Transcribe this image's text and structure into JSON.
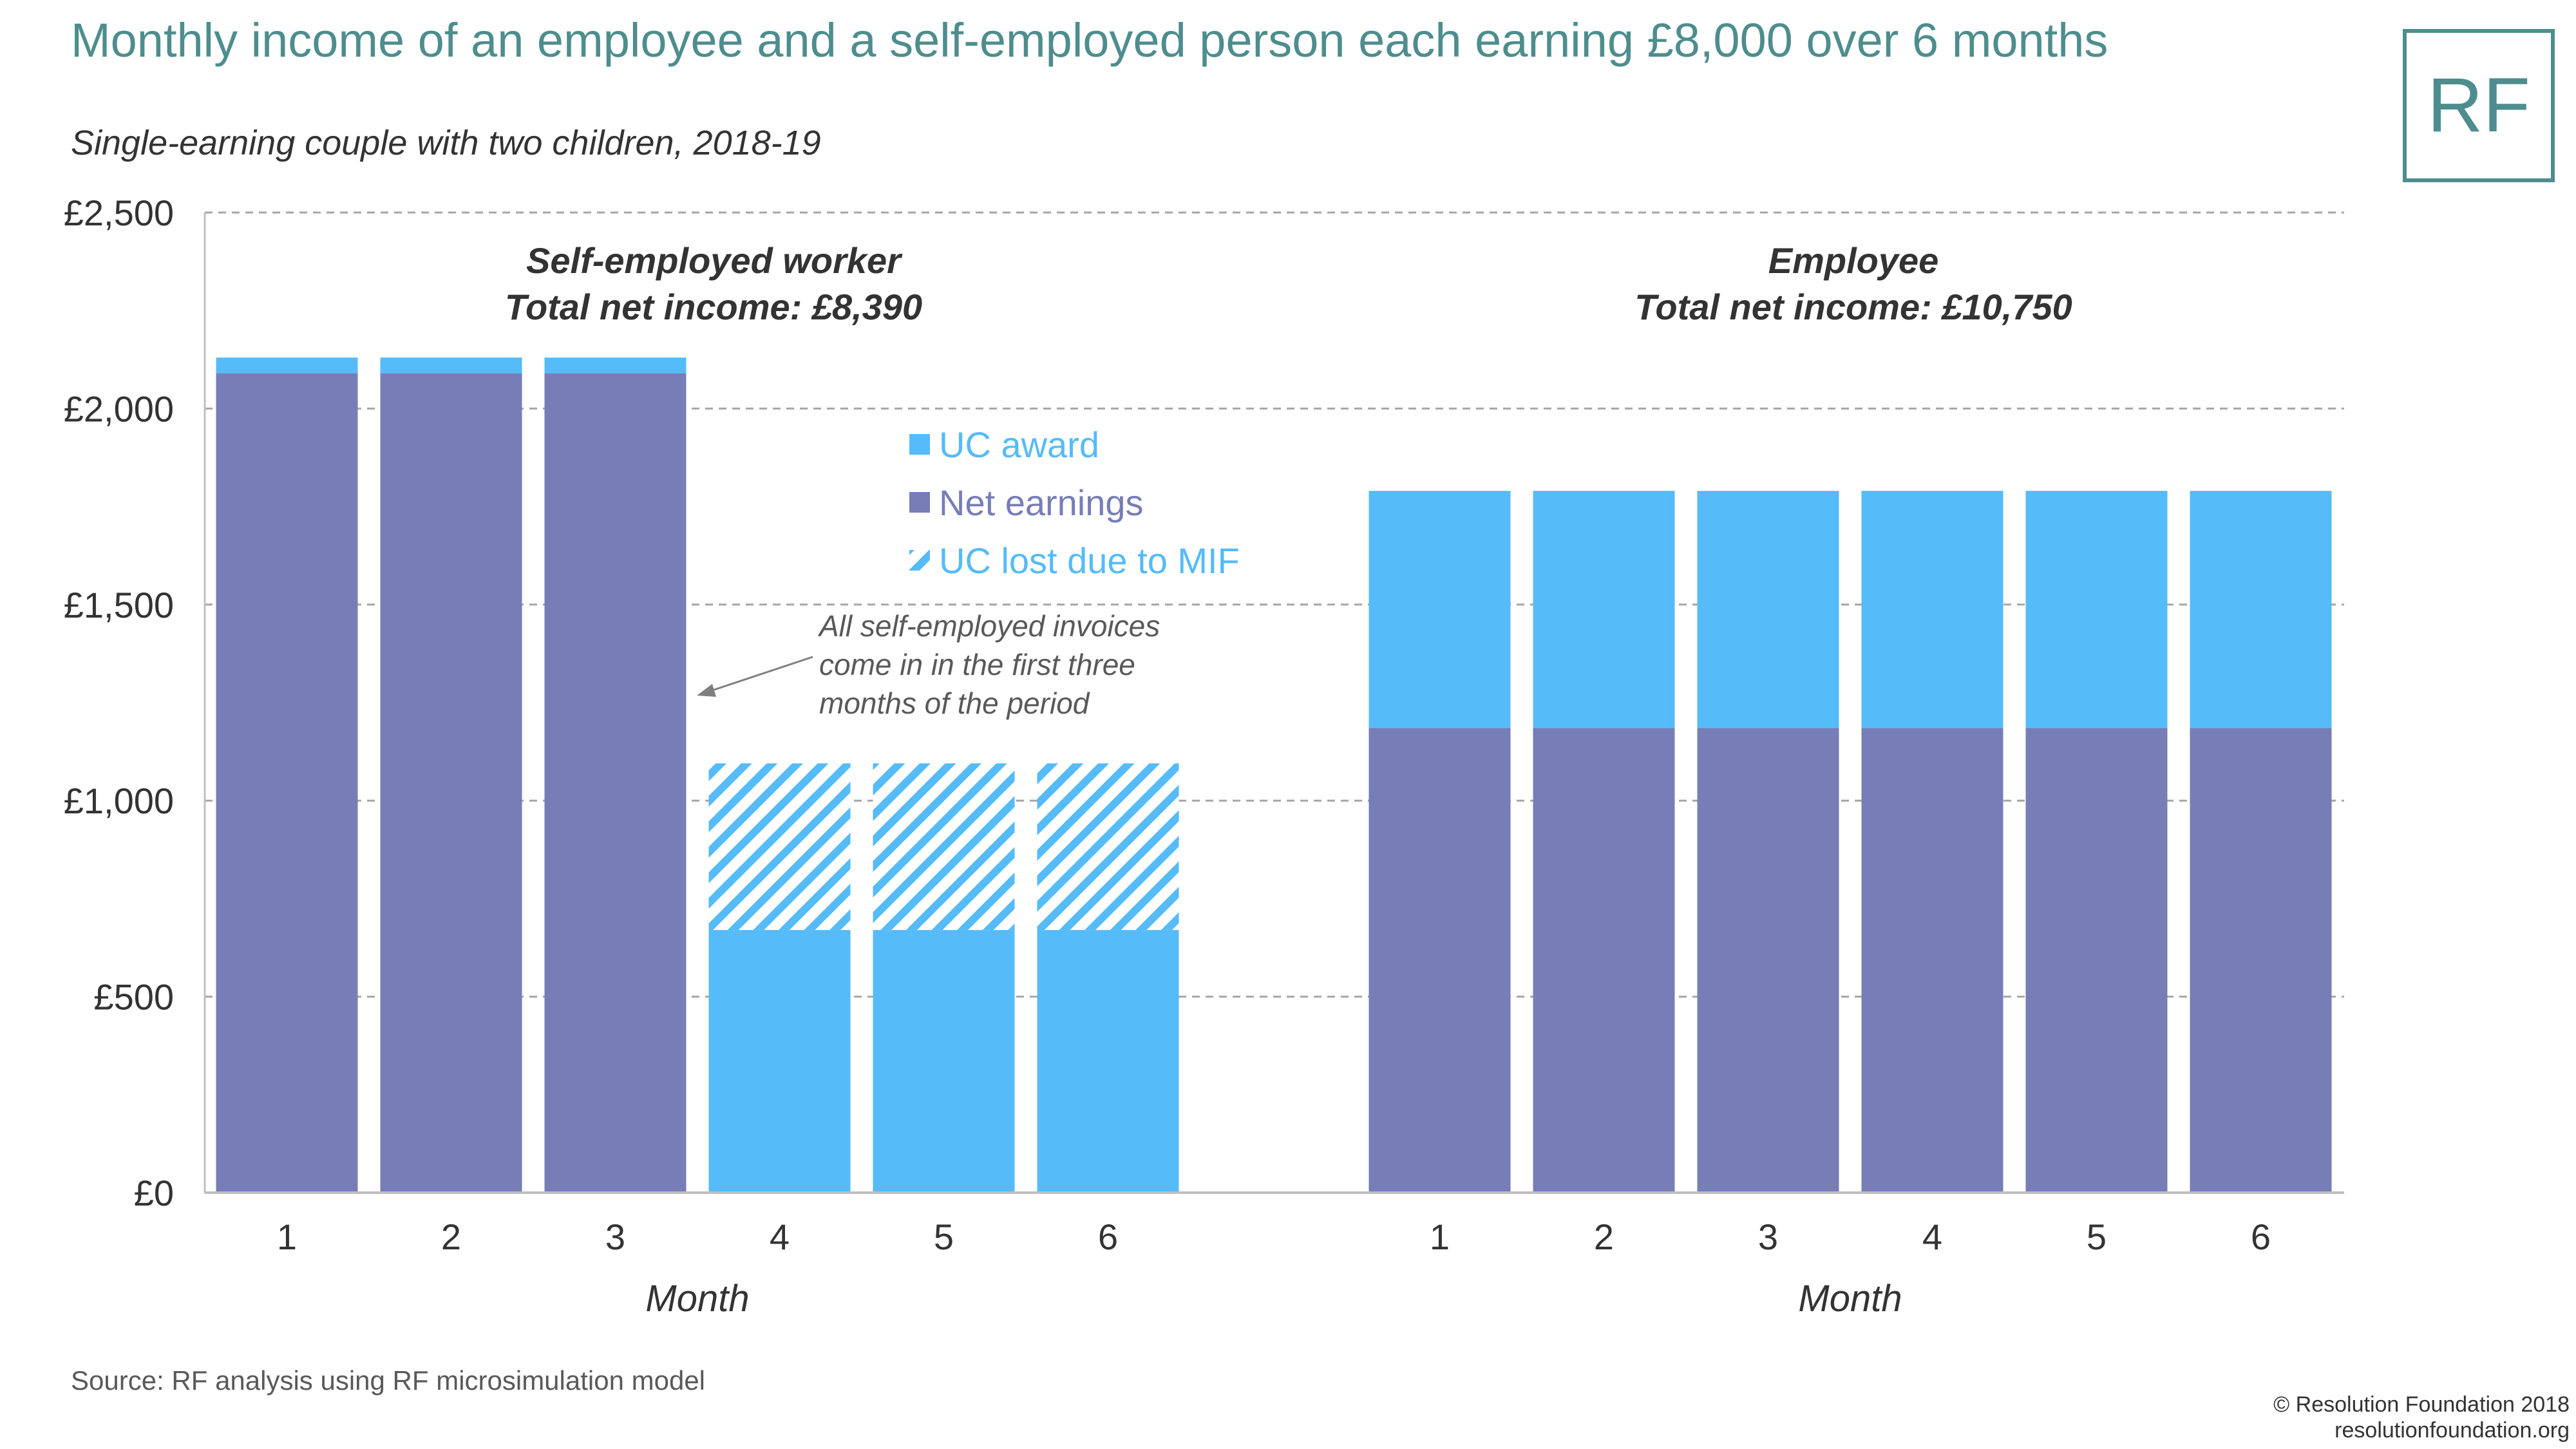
{
  "header": {
    "title": "Monthly income of an employee and a self-employed person each earning £8,000 over 6 months",
    "subtitle": "Single-earning couple with two children, 2018-19",
    "logo_text": "RF"
  },
  "footer": {
    "source": "Source: RF analysis using RF microsimulation model",
    "copyright": "© Resolution Foundation 2018",
    "website": "resolutionfoundation.org"
  },
  "annotation": {
    "lines": [
      "All self-employed invoices",
      "come in in the first three",
      "months of the period"
    ]
  },
  "colors": {
    "uc_award": "#55bbf9",
    "net_earnings": "#777db6",
    "uc_lost": "#55bbf9",
    "grid": "#a6a6a6",
    "title": "#4e8d8d"
  },
  "chart_data": {
    "type": "bar",
    "stacked": true,
    "ylim": [
      0,
      2500
    ],
    "yticks": [
      0,
      500,
      1000,
      1500,
      2000,
      2500
    ],
    "ytick_labels": [
      "£0",
      "£500",
      "£1,000",
      "£1,500",
      "£2,000",
      "£2,500"
    ],
    "grid": true,
    "legend": {
      "placement": "center",
      "entries": [
        {
          "key": "uc_award",
          "label": "UC award"
        },
        {
          "key": "net_earnings",
          "label": "Net earnings"
        },
        {
          "key": "uc_lost",
          "label": "UC lost due to MIF"
        }
      ]
    },
    "groups": [
      {
        "title_lines": [
          "Self-employed worker",
          "Total net income: £8,390"
        ],
        "xlabel": "Month",
        "categories": [
          "1",
          "2",
          "3",
          "4",
          "5",
          "6"
        ],
        "series": [
          {
            "key": "net_earnings",
            "values": [
              2090,
              2090,
              2090,
              0,
              0,
              0
            ]
          },
          {
            "key": "uc_award",
            "values": [
              40,
              40,
              40,
              670,
              670,
              670
            ]
          },
          {
            "key": "uc_lost",
            "values": [
              0,
              0,
              0,
              425,
              425,
              425
            ]
          }
        ]
      },
      {
        "title_lines": [
          "Employee",
          "Total net income: £10,750"
        ],
        "xlabel": "Month",
        "categories": [
          "1",
          "2",
          "3",
          "4",
          "5",
          "6"
        ],
        "series": [
          {
            "key": "net_earnings",
            "values": [
              1185,
              1185,
              1185,
              1185,
              1185,
              1185
            ]
          },
          {
            "key": "uc_award",
            "values": [
              605,
              605,
              605,
              605,
              605,
              605
            ]
          },
          {
            "key": "uc_lost",
            "values": [
              0,
              0,
              0,
              0,
              0,
              0
            ]
          }
        ]
      }
    ]
  }
}
